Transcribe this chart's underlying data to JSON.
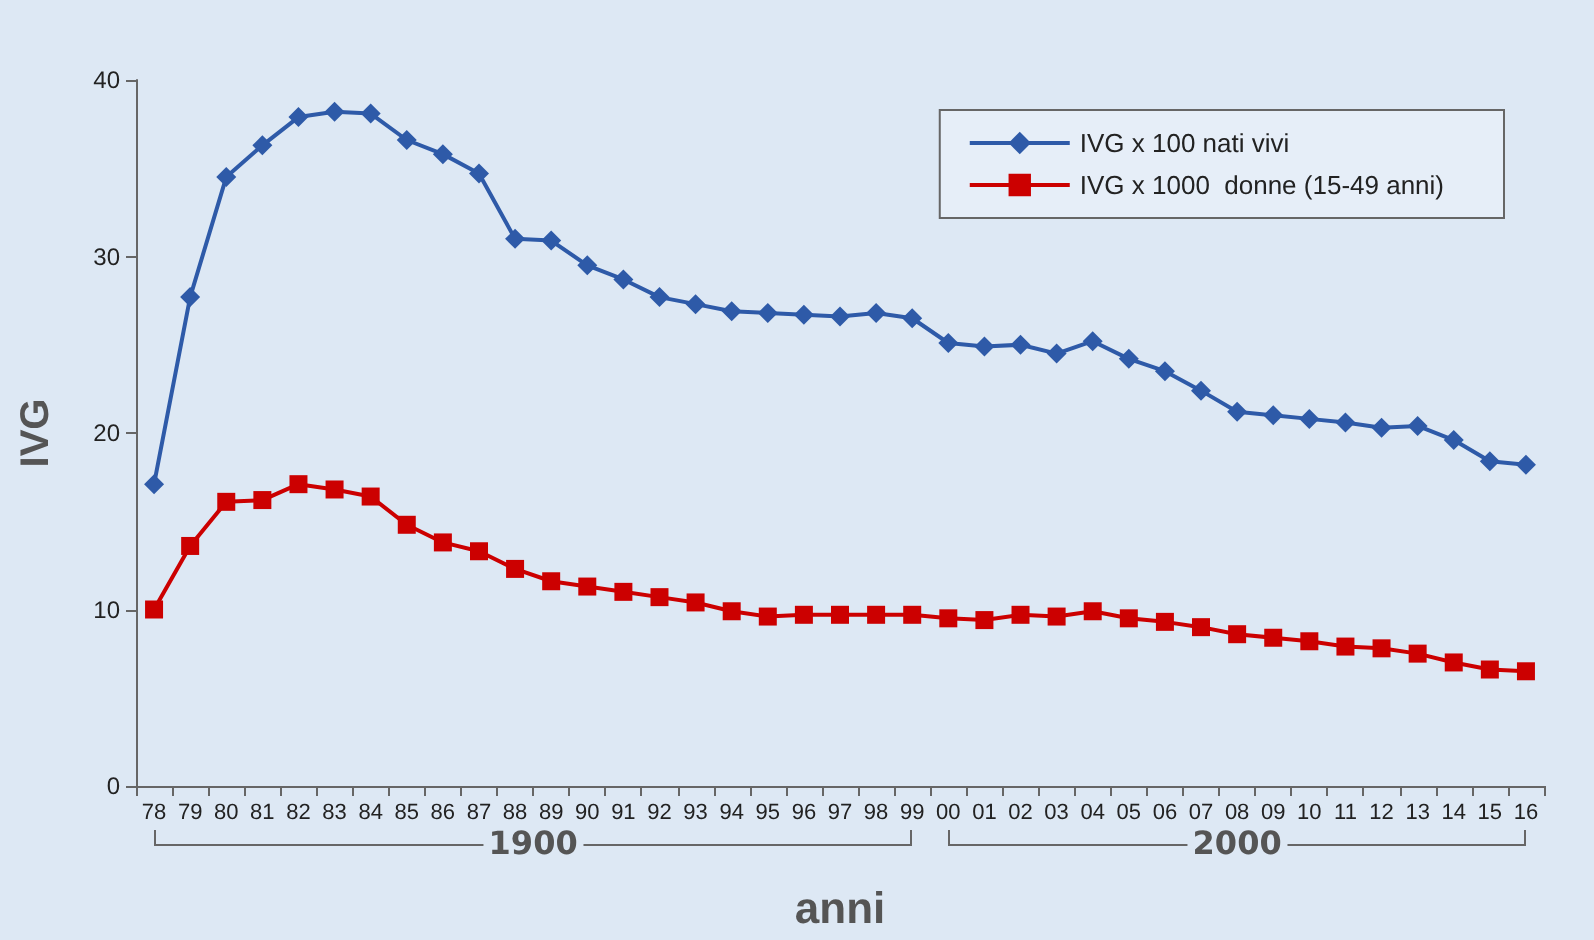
{
  "chart_data": {
    "type": "line",
    "ylabel": "IVG",
    "xlabel": "anni",
    "categories": [
      "78",
      "79",
      "80",
      "81",
      "82",
      "83",
      "84",
      "85",
      "86",
      "87",
      "88",
      "89",
      "90",
      "91",
      "92",
      "93",
      "94",
      "95",
      "96",
      "97",
      "98",
      "99",
      "00",
      "01",
      "02",
      "03",
      "04",
      "05",
      "06",
      "07",
      "08",
      "09",
      "10",
      "11",
      "12",
      "13",
      "14",
      "15",
      "16"
    ],
    "series": [
      {
        "name": "IVG x 100 nati vivi",
        "color": "#2e5aa8",
        "marker": "diamond",
        "values": [
          17.1,
          27.7,
          34.5,
          36.3,
          37.9,
          38.2,
          38.1,
          36.6,
          35.8,
          34.7,
          31.0,
          30.9,
          29.5,
          28.7,
          27.7,
          27.3,
          26.9,
          26.8,
          26.7,
          26.6,
          26.8,
          26.5,
          25.1,
          24.9,
          25.0,
          24.5,
          25.2,
          24.2,
          23.5,
          22.4,
          21.2,
          21.0,
          20.8,
          20.6,
          20.3,
          20.4,
          19.6,
          18.4,
          18.2
        ]
      },
      {
        "name": "IVG x 1000  donne (15-49 anni)",
        "color": "#cc0000",
        "marker": "square",
        "values": [
          10.0,
          13.6,
          16.1,
          16.2,
          17.1,
          16.8,
          16.4,
          14.8,
          13.8,
          13.3,
          12.3,
          11.6,
          11.3,
          11.0,
          10.7,
          10.4,
          9.9,
          9.6,
          9.7,
          9.7,
          9.7,
          9.7,
          9.5,
          9.4,
          9.7,
          9.6,
          9.9,
          9.5,
          9.3,
          9.0,
          8.6,
          8.4,
          8.2,
          7.9,
          7.8,
          7.5,
          7.0,
          6.6,
          6.5
        ]
      }
    ],
    "ylim": [
      0,
      40
    ],
    "yticks": [
      0,
      10,
      20,
      30,
      40
    ],
    "grid": false,
    "legend": "top right",
    "annotations": [
      "1900",
      "2000"
    ]
  }
}
